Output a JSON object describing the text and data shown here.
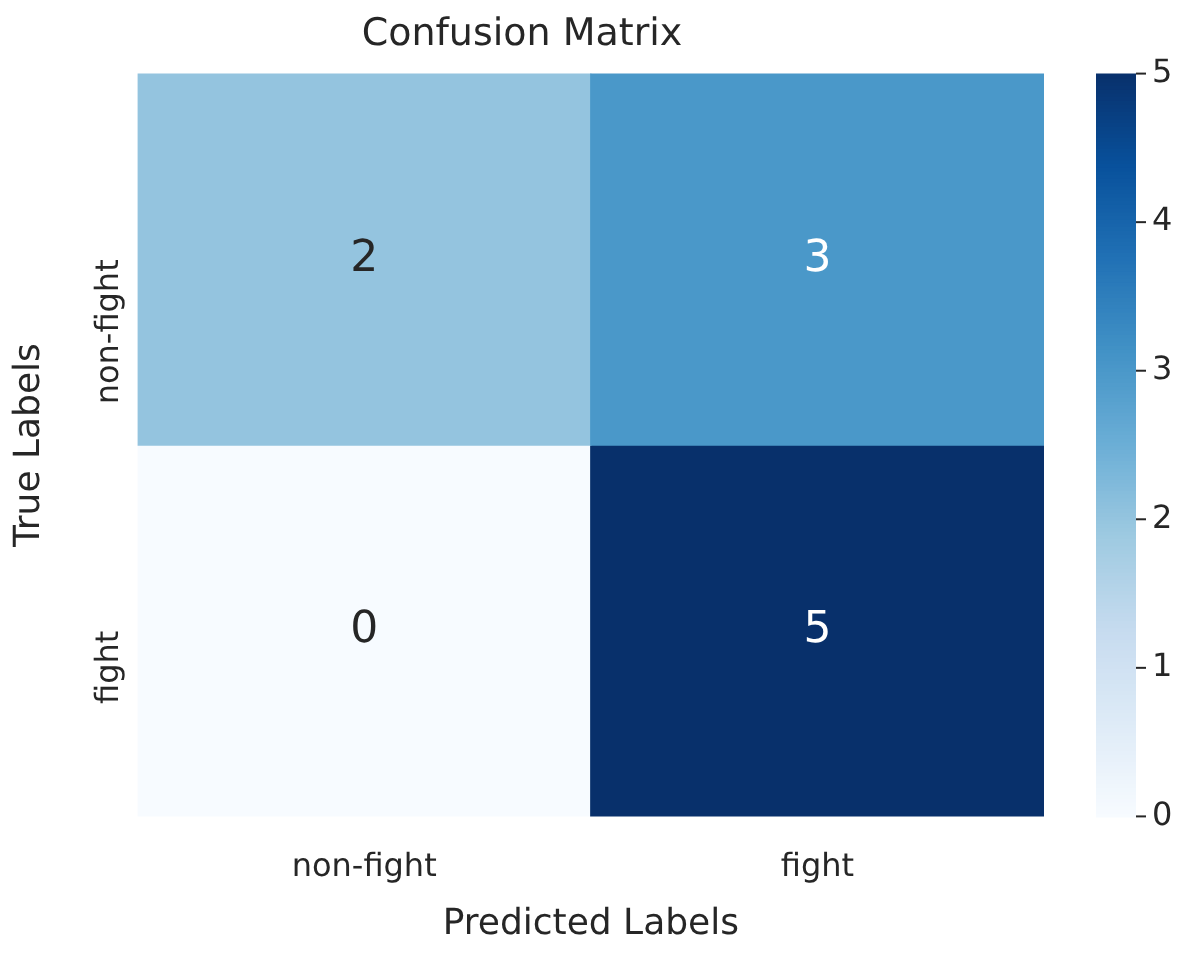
{
  "chart_data": {
    "type": "heatmap",
    "title": "Confusion Matrix",
    "xlabel": "Predicted Labels",
    "ylabel": "True Labels",
    "categories": [
      "non-fight",
      "fight"
    ],
    "y_categories": [
      "non-fight",
      "fight"
    ],
    "cells": [
      [
        2,
        3
      ],
      [
        0,
        5
      ]
    ],
    "clim": [
      0,
      5
    ],
    "cticks": [
      0,
      1,
      2,
      3,
      4,
      5
    ],
    "data_labels": true
  }
}
